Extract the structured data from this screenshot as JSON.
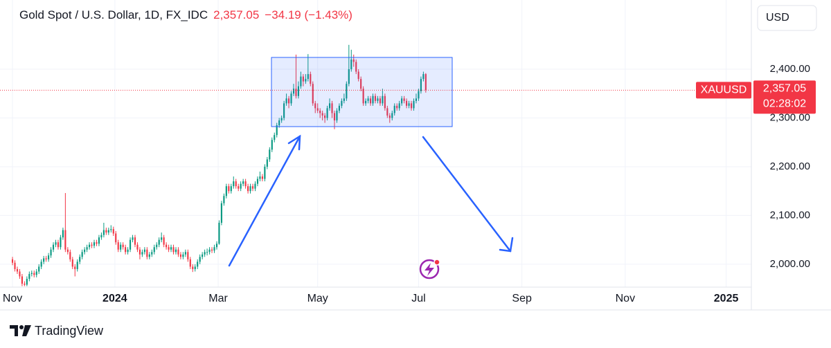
{
  "chart_data": {
    "type": "candlestick",
    "title": "Gold Spot / U.S. Dollar, 1D, FX_IDC",
    "last": {
      "value": 2357.05,
      "label": "2,357.05"
    },
    "change_label": "−34.19 (−1.43%)",
    "symbol": "XAUUSD",
    "countdown": "02:28:02",
    "currency": "USD",
    "brand": "TradingView",
    "up_color": "#089981",
    "down_color": "#f23645",
    "grid": true,
    "ylim": [
      1953,
      2542
    ],
    "yticks": [
      {
        "value": 2000,
        "label": "2,000.00"
      },
      {
        "value": 2100,
        "label": "2,100.00"
      },
      {
        "value": 2200,
        "label": "2,200.00"
      },
      {
        "value": 2300,
        "label": "2,300.00"
      },
      {
        "value": 2400,
        "label": "2,400.00"
      }
    ],
    "xlim": [
      -5.2,
      307.5
    ],
    "xticks": [
      {
        "value": 0,
        "label": "Nov"
      },
      {
        "value": 42.6,
        "label": "2024"
      },
      {
        "value": 85.6,
        "label": "Mar"
      },
      {
        "value": 127,
        "label": "May"
      },
      {
        "value": 169,
        "label": "Jul"
      },
      {
        "value": 212,
        "label": "Sep"
      },
      {
        "value": 255,
        "label": "Nov"
      },
      {
        "value": 297,
        "label": "2025"
      }
    ],
    "candles": [
      [
        2010,
        2015,
        1998,
        2003
      ],
      [
        2003,
        2008,
        1985,
        1990
      ],
      [
        1990,
        1995,
        1980,
        1985
      ],
      [
        1985,
        1990,
        1970,
        1975
      ],
      [
        1975,
        1980,
        1955,
        1960
      ],
      [
        1960,
        1965,
        1955,
        1958
      ],
      [
        1958,
        1975,
        1955,
        1970
      ],
      [
        1970,
        1985,
        1965,
        1980
      ],
      [
        1980,
        1987,
        1975,
        1982
      ],
      [
        1982,
        1987,
        1973,
        1978
      ],
      [
        1978,
        1990,
        1973,
        1985
      ],
      [
        1985,
        2000,
        1980,
        1995
      ],
      [
        1995,
        2010,
        1990,
        2005
      ],
      [
        2005,
        2017,
        2000,
        2012
      ],
      [
        2012,
        2017,
        2005,
        2010
      ],
      [
        2010,
        2023,
        2005,
        2018
      ],
      [
        2018,
        2035,
        2013,
        2030
      ],
      [
        2030,
        2045,
        2025,
        2040
      ],
      [
        2040,
        2050,
        2035,
        2045
      ],
      [
        2045,
        2050,
        2030,
        2035
      ],
      [
        2035,
        2060,
        2030,
        2055
      ],
      [
        2055,
        2075,
        2050,
        2070
      ],
      [
        2070,
        2146,
        2025,
        2030
      ],
      [
        2030,
        2035,
        2020,
        2025
      ],
      [
        2025,
        2030,
        2005,
        2010
      ],
      [
        2010,
        2015,
        1990,
        1995
      ],
      [
        1995,
        2000,
        1975,
        1990
      ],
      [
        1990,
        2010,
        1985,
        2005
      ],
      [
        2005,
        2020,
        2000,
        2015
      ],
      [
        2015,
        2030,
        2010,
        2025
      ],
      [
        2025,
        2035,
        2020,
        2030
      ],
      [
        2030,
        2040,
        2025,
        2035
      ],
      [
        2035,
        2045,
        2030,
        2040
      ],
      [
        2040,
        2045,
        2033,
        2038
      ],
      [
        2038,
        2050,
        2033,
        2045
      ],
      [
        2045,
        2050,
        2037,
        2042
      ],
      [
        2042,
        2060,
        2037,
        2055
      ],
      [
        2055,
        2065,
        2050,
        2060
      ],
      [
        2060,
        2085,
        2055,
        2070
      ],
      [
        2070,
        2075,
        2060,
        2065
      ],
      [
        2065,
        2075,
        2060,
        2070
      ],
      [
        2070,
        2080,
        2065,
        2072
      ],
      [
        2072,
        2077,
        2058,
        2063
      ],
      [
        2063,
        2068,
        2040,
        2045
      ],
      [
        2045,
        2050,
        2025,
        2030
      ],
      [
        2030,
        2045,
        2025,
        2040
      ],
      [
        2040,
        2045,
        2030,
        2035
      ],
      [
        2035,
        2040,
        2020,
        2025
      ],
      [
        2025,
        2035,
        2020,
        2030
      ],
      [
        2030,
        2055,
        2025,
        2050
      ],
      [
        2050,
        2060,
        2045,
        2055
      ],
      [
        2055,
        2060,
        2035,
        2040
      ],
      [
        2040,
        2045,
        2025,
        2030
      ],
      [
        2030,
        2035,
        2010,
        2020
      ],
      [
        2020,
        2030,
        2015,
        2025
      ],
      [
        2025,
        2035,
        2020,
        2030
      ],
      [
        2030,
        2035,
        2010,
        2015
      ],
      [
        2015,
        2025,
        2010,
        2020
      ],
      [
        2020,
        2030,
        2015,
        2025
      ],
      [
        2025,
        2040,
        2020,
        2035
      ],
      [
        2035,
        2045,
        2030,
        2040
      ],
      [
        2040,
        2055,
        2035,
        2050
      ],
      [
        2050,
        2065,
        2045,
        2055
      ],
      [
        2055,
        2060,
        2035,
        2040
      ],
      [
        2040,
        2045,
        2030,
        2035
      ],
      [
        2035,
        2040,
        2025,
        2030
      ],
      [
        2030,
        2040,
        2025,
        2035
      ],
      [
        2035,
        2040,
        2020,
        2025
      ],
      [
        2025,
        2035,
        2020,
        2030
      ],
      [
        2030,
        2035,
        2015,
        2020
      ],
      [
        2020,
        2025,
        2010,
        2015
      ],
      [
        2015,
        2025,
        2010,
        2020
      ],
      [
        2020,
        2030,
        2015,
        2025
      ],
      [
        2025,
        2030,
        2005,
        2010
      ],
      [
        2010,
        2015,
        1990,
        1995
      ],
      [
        1995,
        2000,
        1984,
        1990
      ],
      [
        1990,
        2000,
        1985,
        1995
      ],
      [
        1995,
        2010,
        1990,
        2005
      ],
      [
        2005,
        2020,
        2000,
        2015
      ],
      [
        2015,
        2025,
        2010,
        2020
      ],
      [
        2020,
        2030,
        2015,
        2025
      ],
      [
        2025,
        2032,
        2018,
        2025
      ],
      [
        2025,
        2035,
        2020,
        2030
      ],
      [
        2030,
        2035,
        2023,
        2028
      ],
      [
        2028,
        2040,
        2023,
        2035
      ],
      [
        2035,
        2047,
        2030,
        2042
      ],
      [
        2042,
        2090,
        2040,
        2085
      ],
      [
        2085,
        2130,
        2080,
        2125
      ],
      [
        2125,
        2145,
        2120,
        2140
      ],
      [
        2140,
        2165,
        2135,
        2160
      ],
      [
        2160,
        2165,
        2145,
        2150
      ],
      [
        2150,
        2165,
        2145,
        2160
      ],
      [
        2160,
        2180,
        2155,
        2170
      ],
      [
        2170,
        2175,
        2155,
        2160
      ],
      [
        2160,
        2165,
        2150,
        2155
      ],
      [
        2155,
        2170,
        2150,
        2165
      ],
      [
        2165,
        2175,
        2160,
        2170
      ],
      [
        2170,
        2175,
        2155,
        2160
      ],
      [
        2160,
        2165,
        2145,
        2150
      ],
      [
        2150,
        2165,
        2145,
        2160
      ],
      [
        2160,
        2165,
        2150,
        2155
      ],
      [
        2155,
        2170,
        2150,
        2165
      ],
      [
        2165,
        2180,
        2160,
        2175
      ],
      [
        2175,
        2190,
        2170,
        2180
      ],
      [
        2180,
        2185,
        2170,
        2175
      ],
      [
        2175,
        2205,
        2170,
        2200
      ],
      [
        2200,
        2220,
        2195,
        2215
      ],
      [
        2215,
        2240,
        2210,
        2235
      ],
      [
        2235,
        2260,
        2230,
        2255
      ],
      [
        2255,
        2270,
        2250,
        2265
      ],
      [
        2265,
        2290,
        2260,
        2285
      ],
      [
        2285,
        2300,
        2280,
        2295
      ],
      [
        2295,
        2305,
        2290,
        2300
      ],
      [
        2300,
        2335,
        2295,
        2330
      ],
      [
        2330,
        2350,
        2325,
        2340
      ],
      [
        2340,
        2345,
        2320,
        2330
      ],
      [
        2330,
        2355,
        2325,
        2350
      ],
      [
        2350,
        2370,
        2345,
        2360
      ],
      [
        2360,
        2430,
        2340,
        2345
      ],
      [
        2345,
        2375,
        2340,
        2365
      ],
      [
        2365,
        2395,
        2360,
        2385
      ],
      [
        2385,
        2390,
        2365,
        2375
      ],
      [
        2375,
        2390,
        2370,
        2380
      ],
      [
        2380,
        2431,
        2375,
        2390
      ],
      [
        2390,
        2395,
        2365,
        2370
      ],
      [
        2370,
        2375,
        2325,
        2330
      ],
      [
        2330,
        2335,
        2310,
        2320
      ],
      [
        2320,
        2330,
        2310,
        2315
      ],
      [
        2315,
        2320,
        2300,
        2310
      ],
      [
        2310,
        2315,
        2295,
        2305
      ],
      [
        2305,
        2310,
        2290,
        2300
      ],
      [
        2300,
        2325,
        2295,
        2320
      ],
      [
        2320,
        2340,
        2315,
        2330
      ],
      [
        2330,
        2335,
        2300,
        2310
      ],
      [
        2310,
        2315,
        2277,
        2295
      ],
      [
        2295,
        2320,
        2290,
        2315
      ],
      [
        2315,
        2330,
        2310,
        2325
      ],
      [
        2325,
        2340,
        2320,
        2335
      ],
      [
        2335,
        2350,
        2330,
        2340
      ],
      [
        2340,
        2375,
        2335,
        2370
      ],
      [
        2370,
        2450,
        2365,
        2400
      ],
      [
        2400,
        2440,
        2395,
        2420
      ],
      [
        2420,
        2430,
        2405,
        2415
      ],
      [
        2415,
        2420,
        2390,
        2395
      ],
      [
        2395,
        2400,
        2375,
        2380
      ],
      [
        2380,
        2385,
        2355,
        2360
      ],
      [
        2360,
        2365,
        2325,
        2330
      ],
      [
        2330,
        2340,
        2325,
        2335
      ],
      [
        2335,
        2345,
        2330,
        2340
      ],
      [
        2340,
        2345,
        2325,
        2330
      ],
      [
        2330,
        2350,
        2325,
        2345
      ],
      [
        2345,
        2350,
        2330,
        2335
      ],
      [
        2335,
        2345,
        2330,
        2340
      ],
      [
        2340,
        2345,
        2325,
        2330
      ],
      [
        2330,
        2360,
        2325,
        2345
      ],
      [
        2345,
        2350,
        2315,
        2320
      ],
      [
        2320,
        2325,
        2300,
        2305
      ],
      [
        2305,
        2310,
        2290,
        2300
      ],
      [
        2300,
        2315,
        2295,
        2310
      ],
      [
        2310,
        2330,
        2305,
        2325
      ],
      [
        2325,
        2330,
        2315,
        2320
      ],
      [
        2320,
        2335,
        2315,
        2330
      ],
      [
        2330,
        2345,
        2325,
        2340
      ],
      [
        2340,
        2345,
        2330,
        2335
      ],
      [
        2335,
        2340,
        2320,
        2325
      ],
      [
        2325,
        2335,
        2320,
        2330
      ],
      [
        2330,
        2335,
        2315,
        2320
      ],
      [
        2320,
        2340,
        2315,
        2335
      ],
      [
        2335,
        2350,
        2330,
        2340
      ],
      [
        2340,
        2360,
        2335,
        2355
      ],
      [
        2355,
        2385,
        2350,
        2380
      ],
      [
        2380,
        2395,
        2375,
        2390
      ],
      [
        2390,
        2392,
        2352,
        2357.05
      ]
    ]
  }
}
